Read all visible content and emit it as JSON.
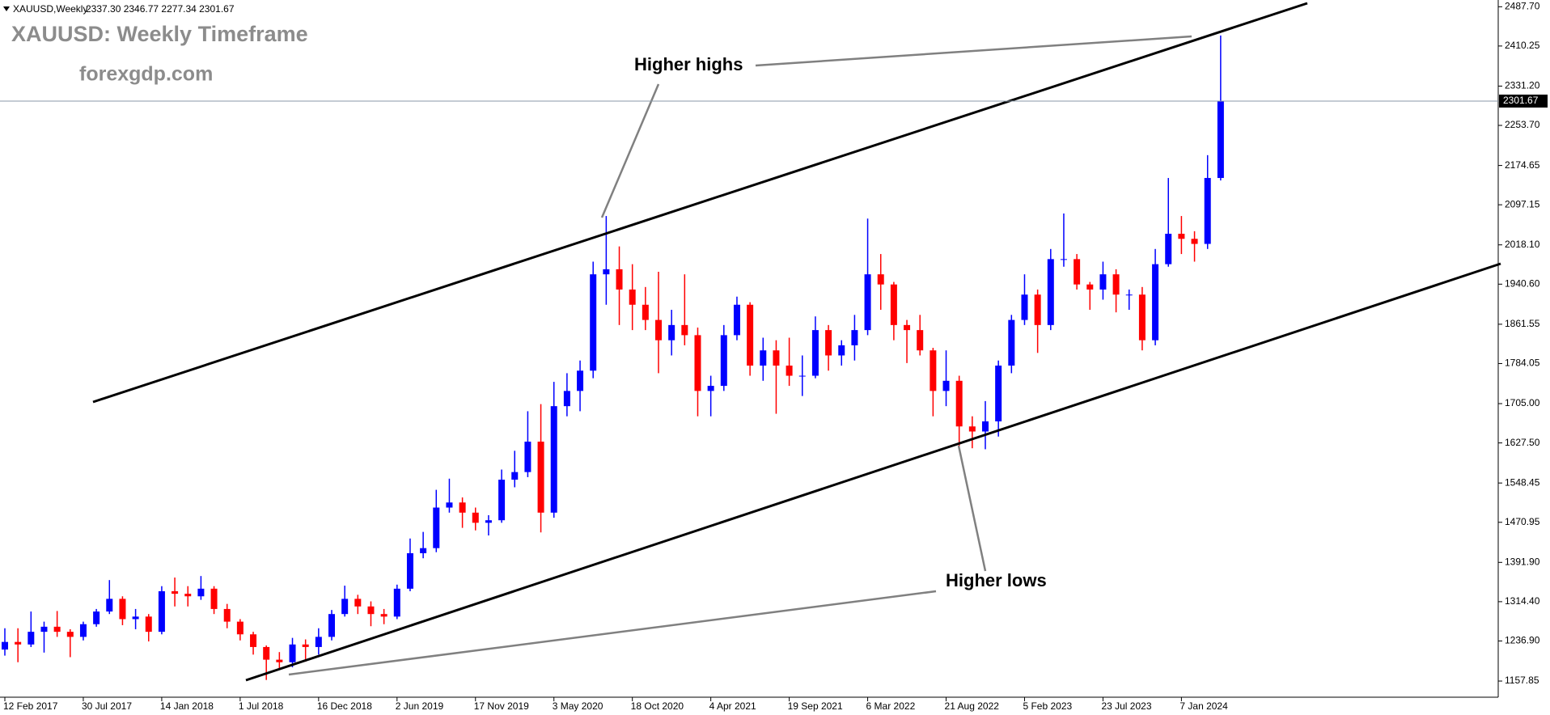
{
  "header": {
    "symbol": "XAUUSD,Weekly",
    "ohlc": "2337.30 2346.77 2277.34 2301.67"
  },
  "chart_data": {
    "type": "candlestick",
    "title": "XAUUSD: Weekly Timeframe",
    "subtitle": "forexgdp.com",
    "annotations": [
      "Higher highs",
      "Higher lows"
    ],
    "up_color": "#0000ff",
    "down_color": "#ff0000",
    "current_price": 2301.67,
    "ylim": [
      1126,
      2501
    ],
    "yticks": [
      {
        "value": 2487.7,
        "label": "2487.70"
      },
      2410.25,
      {
        "value": 2331.2,
        "label": "2331.20"
      },
      {
        "value": 2253.7,
        "label": "2253.70"
      },
      2174.65,
      2097.15,
      {
        "value": 2018.1,
        "label": "2018.10"
      },
      {
        "value": 1940.6,
        "label": "1940.60"
      },
      1861.55,
      1784.05,
      {
        "value": 1705,
        "label": "1705.00"
      },
      {
        "value": 1627.5,
        "label": "1627.50"
      },
      1548.45,
      1470.95,
      {
        "value": 1391.9,
        "label": "1391.90"
      },
      {
        "value": 1314.4,
        "label": "1314.40"
      },
      {
        "value": 1236.9,
        "label": "1236.90"
      },
      1157.85
    ],
    "categories": [
      "12 Feb 2017",
      null,
      null,
      null,
      null,
      null,
      "30 Jul 2017",
      null,
      null,
      null,
      null,
      null,
      "14 Jan 2018",
      null,
      null,
      null,
      null,
      null,
      "1 Jul 2018",
      null,
      null,
      null,
      null,
      null,
      "16 Dec 2018",
      null,
      null,
      null,
      null,
      null,
      "2 Jun 2019",
      null,
      null,
      null,
      null,
      null,
      "17 Nov 2019",
      null,
      null,
      null,
      null,
      null,
      "3 May 2020",
      null,
      null,
      null,
      null,
      null,
      "18 Oct 2020",
      null,
      null,
      null,
      null,
      null,
      "4 Apr 2021",
      null,
      null,
      null,
      null,
      null,
      "19 Sep 2021",
      null,
      null,
      null,
      null,
      null,
      "6 Mar 2022",
      null,
      null,
      null,
      null,
      null,
      "21 Aug 2022",
      null,
      null,
      null,
      null,
      null,
      "5 Feb 2023",
      null,
      null,
      null,
      null,
      null,
      "23 Jul 2023",
      null,
      null,
      null,
      null,
      null,
      "7 Jan 2024",
      null,
      null,
      null
    ],
    "open": [
      1220,
      1235,
      1230,
      1255,
      1265,
      1255,
      1245,
      1270,
      1295,
      1320,
      1280,
      1285,
      1255,
      1335,
      1330,
      1325,
      1340,
      1300,
      1275,
      1250,
      1225,
      1200,
      1195,
      1230,
      1225,
      1245,
      1290,
      1320,
      1305,
      1290,
      1285,
      1340,
      1410,
      1420,
      1500,
      1510,
      1490,
      1470,
      1475,
      1555,
      1570,
      1630,
      1490,
      1700,
      1730,
      1770,
      1960,
      1970,
      1930,
      1900,
      1870,
      1830,
      1860,
      1840,
      1730,
      1740,
      1840,
      1900,
      1780,
      1810,
      1780,
      1760,
      1760,
      1850,
      1800,
      1820,
      1850,
      1960,
      1940,
      1860,
      1850,
      1810,
      1730,
      1750,
      1660,
      1650,
      1670,
      1780,
      1870,
      1920,
      1860,
      1990,
      1990,
      1940,
      1930,
      1960,
      1920,
      1920,
      1830,
      1980,
      2040,
      2030,
      2020,
      2150
    ],
    "high": [
      1262,
      1262,
      1295,
      1275,
      1296,
      1260,
      1275,
      1300,
      1357,
      1325,
      1300,
      1290,
      1345,
      1362,
      1345,
      1365,
      1345,
      1310,
      1280,
      1255,
      1228,
      1215,
      1243,
      1240,
      1262,
      1298,
      1346,
      1328,
      1315,
      1300,
      1348,
      1439,
      1452,
      1535,
      1557,
      1520,
      1500,
      1485,
      1575,
      1612,
      1690,
      1704,
      1748,
      1765,
      1790,
      1985,
      2075,
      2015,
      1980,
      1935,
      1965,
      1890,
      1960,
      1855,
      1760,
      1860,
      1916,
      1905,
      1835,
      1830,
      1835,
      1800,
      1877,
      1860,
      1830,
      1880,
      2070,
      2000,
      1945,
      1870,
      1880,
      1815,
      1810,
      1760,
      1680,
      1710,
      1790,
      1880,
      1960,
      1930,
      2010,
      2080,
      2000,
      1945,
      1985,
      1970,
      1930,
      1935,
      2010,
      2150,
      2075,
      2045,
      2195,
      2431
    ],
    "low": [
      1208,
      1195,
      1225,
      1214,
      1245,
      1205,
      1238,
      1265,
      1290,
      1268,
      1260,
      1236,
      1250,
      1305,
      1305,
      1318,
      1290,
      1262,
      1238,
      1210,
      1160,
      1180,
      1185,
      1196,
      1210,
      1238,
      1285,
      1290,
      1266,
      1270,
      1280,
      1335,
      1400,
      1412,
      1490,
      1460,
      1455,
      1445,
      1470,
      1540,
      1560,
      1451,
      1480,
      1680,
      1690,
      1755,
      1900,
      1860,
      1850,
      1850,
      1765,
      1800,
      1820,
      1680,
      1680,
      1730,
      1830,
      1760,
      1750,
      1685,
      1740,
      1720,
      1755,
      1770,
      1780,
      1790,
      1840,
      1890,
      1830,
      1785,
      1800,
      1680,
      1700,
      1620,
      1617,
      1615,
      1640,
      1765,
      1860,
      1805,
      1850,
      1975,
      1930,
      1890,
      1910,
      1885,
      1890,
      1810,
      1820,
      1975,
      2000,
      1985,
      2010,
      2145
    ],
    "close": [
      1235,
      1230,
      1255,
      1265,
      1255,
      1245,
      1270,
      1295,
      1320,
      1280,
      1285,
      1255,
      1335,
      1330,
      1325,
      1340,
      1300,
      1275,
      1250,
      1225,
      1200,
      1195,
      1230,
      1225,
      1245,
      1290,
      1320,
      1305,
      1290,
      1285,
      1340,
      1410,
      1420,
      1500,
      1510,
      1490,
      1470,
      1475,
      1555,
      1570,
      1630,
      1490,
      1700,
      1730,
      1770,
      1960,
      1970,
      1930,
      1900,
      1870,
      1830,
      1860,
      1840,
      1730,
      1740,
      1840,
      1900,
      1780,
      1810,
      1780,
      1760,
      1760,
      1850,
      1800,
      1820,
      1850,
      1960,
      1940,
      1860,
      1850,
      1810,
      1730,
      1750,
      1660,
      1650,
      1670,
      1780,
      1870,
      1920,
      1860,
      1990,
      1990,
      1940,
      1930,
      1960,
      1920,
      1920,
      1830,
      1980,
      2040,
      2030,
      2020,
      2150,
      2301.67
    ]
  }
}
